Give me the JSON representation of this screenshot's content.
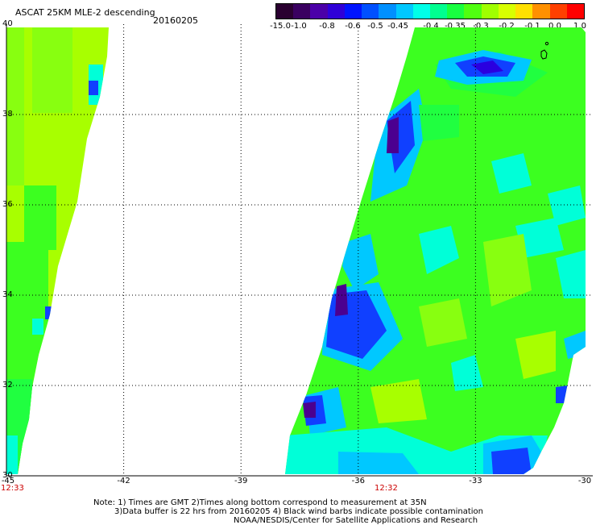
{
  "header": {
    "title": "ASCAT 25KM MLE-2 descending",
    "date": "20160205"
  },
  "legend": {
    "tick_labels": [
      "-15.0",
      "-1.0",
      "-0.8",
      "-0.6",
      "-0.5",
      "-0.45",
      "-0.4",
      "-0.35",
      "-0.3",
      "-0.2",
      "-0.1",
      "0.0",
      "1.0"
    ],
    "colors": [
      "#2a0030",
      "#3a0060",
      "#4b00a8",
      "#2f00d8",
      "#0014ff",
      "#0050ff",
      "#0090ff",
      "#00c8ff",
      "#00ffe8",
      "#00ff90",
      "#18ff40",
      "#50ff10",
      "#a0ff00",
      "#d8ff00",
      "#ffe000",
      "#ff9000",
      "#ff4000",
      "#ff0000"
    ]
  },
  "map": {
    "lon_min": -45,
    "lon_max": -30,
    "lat_min": 30,
    "lat_max": 40,
    "x_ticks": [
      "-45",
      "-42",
      "-39",
      "-36",
      "-33",
      "-30"
    ],
    "y_ticks": [
      "40",
      "38",
      "36",
      "34",
      "32",
      "30"
    ],
    "swath_times": [
      "12:33",
      "12:32"
    ],
    "colors": {
      "lime": "#a8ff00",
      "yellowgreen": "#88ff10",
      "green": "#3cff20",
      "brightgreen": "#20ff40",
      "cyan": "#00ffd8",
      "skyblue": "#00c8ff",
      "blue": "#1040ff",
      "darkblue": "#2a00e0",
      "purple": "#4b0090"
    }
  },
  "footer": {
    "note_line1": "Note: 1) Times are GMT 2)Times along bottom correspond to measurement at 35N",
    "note_line2": "3)Data buffer is 22 hrs from 20160205 4) Black wind barbs indicate possible contamination",
    "credit": "NOAA/NESDIS/Center for Satellite Applications and Research"
  }
}
